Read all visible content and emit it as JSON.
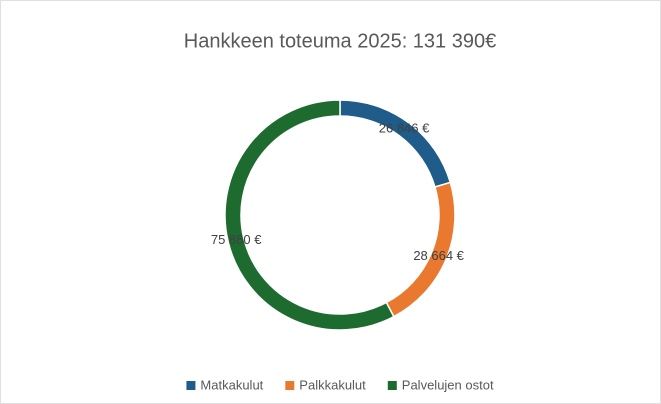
{
  "chart_data": {
    "type": "donut",
    "title": "Hankkeen toteuma 2025: 131 390€",
    "categories": [
      "Matkakulut",
      "Palkkakulut",
      "Palvelujen ostot"
    ],
    "values": [
      26846,
      28664,
      75880
    ],
    "value_labels": [
      "26 846 €",
      "28 664 €",
      "75 880 €"
    ],
    "colors": [
      "#1f5c8a",
      "#e8792f",
      "#1e6b30"
    ],
    "legend": "bottom"
  }
}
